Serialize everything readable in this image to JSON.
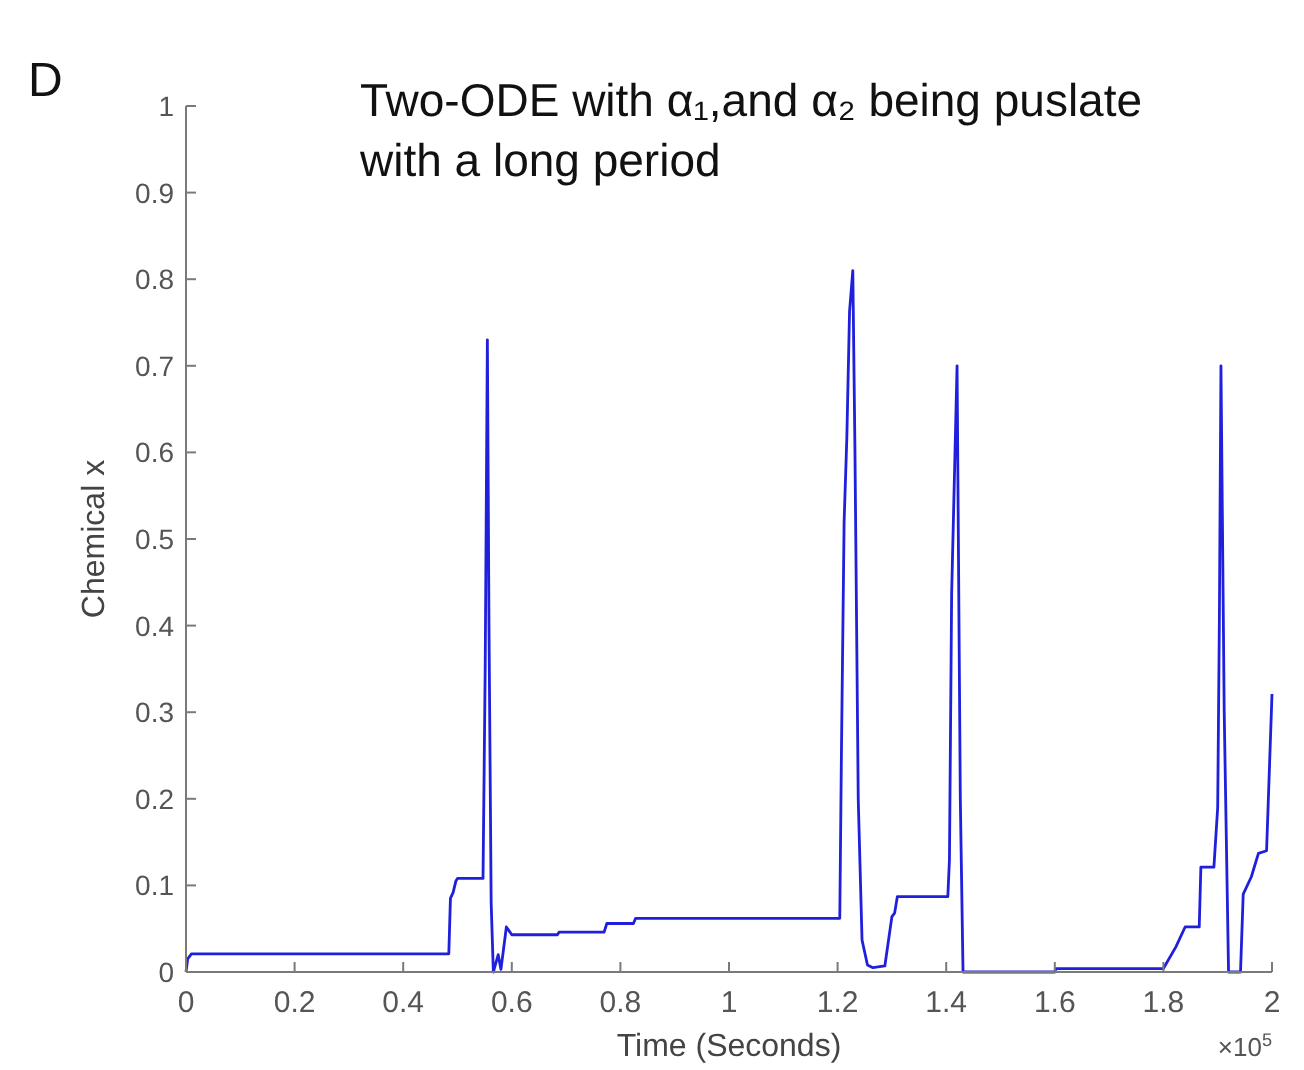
{
  "chart_data": {
    "type": "line",
    "title": "Two-ODE with α₁,and α₂ being puslate\nwith a long period",
    "xlabel": "Time (Seconds)",
    "ylabel": "Chemical x",
    "annotations": [
      "D",
      "×10$^{5}$"
    ],
    "series": [
      {
        "color": "#1f1fdc",
        "x": [
          0,
          0.003,
          0.01,
          0.3,
          0.484,
          0.487,
          0.492,
          0.497,
          0.5,
          0.547,
          0.551,
          0.555,
          0.558,
          0.562,
          0.566,
          0.575,
          0.58,
          0.59,
          0.6,
          0.684,
          0.687,
          0.77,
          0.775,
          0.824,
          0.828,
          1.0,
          1.204,
          1.207,
          1.212,
          1.217,
          1.222,
          1.228,
          1.232,
          1.238,
          1.245,
          1.255,
          1.265,
          1.287,
          1.3,
          1.305,
          1.31,
          1.403,
          1.406,
          1.41,
          1.42,
          1.426,
          1.431,
          1.6,
          1.602,
          1.8,
          1.823,
          1.84,
          1.866,
          1.869,
          1.893,
          1.9,
          1.903,
          1.906,
          1.912,
          1.92,
          1.942,
          1.947,
          1.962,
          1.975,
          1.99,
          2.0
        ],
        "values": [
          0,
          0.015,
          0.021,
          0.021,
          0.021,
          0.085,
          0.092,
          0.105,
          0.108,
          0.108,
          0.35,
          0.73,
          0.4,
          0.08,
          0,
          0.02,
          0.003,
          0.052,
          0.043,
          0.043,
          0.046,
          0.046,
          0.056,
          0.056,
          0.062,
          0.062,
          0.062,
          0.25,
          0.52,
          0.617,
          0.763,
          0.81,
          0.6,
          0.2,
          0.037,
          0.008,
          0.005,
          0.007,
          0.064,
          0.068,
          0.087,
          0.087,
          0.13,
          0.436,
          0.7,
          0.2,
          0,
          0,
          0.004,
          0.004,
          0.029,
          0.052,
          0.052,
          0.121,
          0.121,
          0.19,
          0.4,
          0.7,
          0.3,
          0,
          0,
          0.09,
          0.11,
          0.137,
          0.14,
          0.321
        ]
      }
    ],
    "xlim": [
      0,
      2
    ],
    "xticks": [
      0,
      0.2,
      0.4,
      0.6,
      0.8,
      1,
      1.2,
      1.4,
      1.6,
      1.8,
      2
    ],
    "ylim": [
      0,
      1
    ],
    "yticks": [
      0,
      0.1,
      0.2,
      0.3,
      0.4,
      0.5,
      0.6,
      0.7,
      0.8,
      0.9,
      1
    ],
    "grid": false
  }
}
